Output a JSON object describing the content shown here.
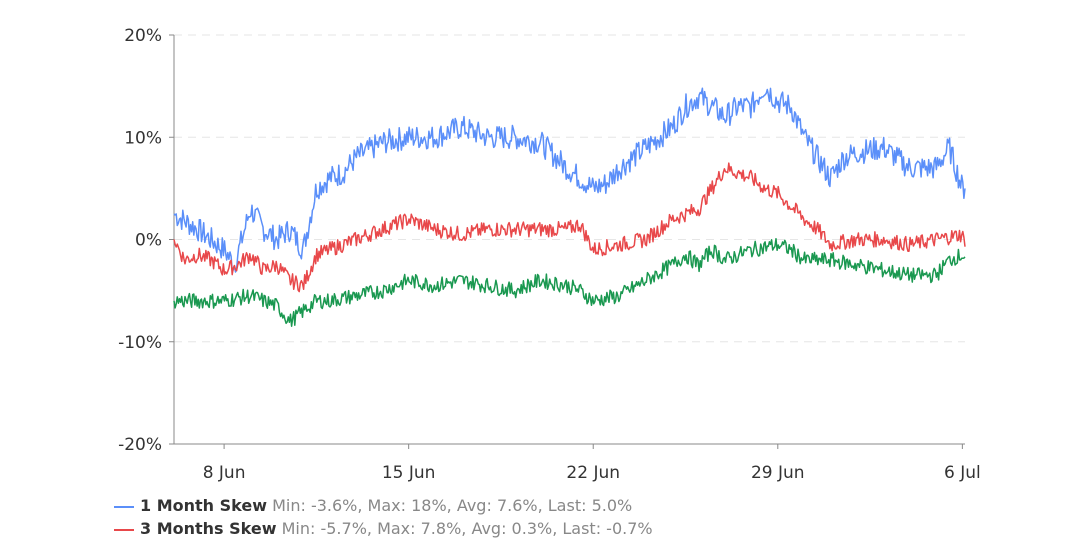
{
  "chart_data": {
    "type": "line",
    "title": "",
    "xlabel": "",
    "ylabel": "",
    "ylim": [
      -20,
      20
    ],
    "yticks": [
      "20%",
      "10%",
      "0%",
      "-10%",
      "-20%"
    ],
    "ytick_values": [
      20,
      10,
      0,
      -10,
      -20
    ],
    "xticks": [
      "8 Jun",
      "15 Jun",
      "22 Jun",
      "29 Jun",
      "6 Jul"
    ],
    "xtick_days": [
      2,
      9,
      16,
      23,
      30
    ],
    "xlim_days": [
      0.1,
      30.1
    ],
    "grid": true,
    "legend_position": "bottom-left",
    "series": [
      {
        "name": "1 Month Skew",
        "stats": "Min: -3.6%, Max: 18%, Avg: 7.6%, Last: 5.0%",
        "color": "#5b8ff9",
        "x_days": [
          0.1,
          1,
          1.5,
          2,
          2.4,
          3,
          3.5,
          4,
          4.5,
          5,
          5.5,
          6,
          6.5,
          7,
          8,
          9,
          10,
          11,
          12,
          13,
          14,
          15,
          16,
          16.5,
          17,
          18,
          19,
          19.5,
          20,
          21,
          21.5,
          22,
          22.5,
          23,
          23.5,
          24,
          24.5,
          25,
          25.5,
          26,
          27,
          28,
          29,
          29.5,
          30,
          30.1
        ],
        "values": [
          2.5,
          1,
          0,
          -1,
          -2.5,
          3,
          1,
          0,
          1,
          -1,
          5,
          6,
          6.5,
          8,
          9.5,
          10,
          10,
          11,
          10,
          10,
          9.5,
          7,
          5,
          5.5,
          7,
          9,
          11,
          13,
          14,
          12,
          13,
          13,
          15,
          13.5,
          13,
          10,
          8,
          6,
          8,
          8.5,
          9,
          7,
          7,
          9,
          5,
          5.0
        ]
      },
      {
        "name": "3 Months Skew",
        "stats": "Min: -5.7%, Max: 7.8%, Avg: 0.3%, Last: -0.7%",
        "color": "#e8484a",
        "x_days": [
          0.1,
          0.5,
          1,
          1.5,
          2,
          2.5,
          3,
          3.5,
          4,
          4.5,
          5,
          5.5,
          6,
          7,
          8,
          9,
          10,
          11,
          12,
          13,
          14,
          15,
          15.5,
          16,
          17,
          18,
          19,
          20,
          20.5,
          21,
          21.5,
          22,
          22.5,
          23,
          24,
          24.5,
          25,
          26,
          27,
          28,
          29,
          30,
          30.1
        ],
        "values": [
          0,
          -2,
          -1.5,
          -2,
          -3,
          -2.5,
          -1.5,
          -3,
          -2.5,
          -4,
          -4.5,
          -1.5,
          -1,
          0,
          1,
          2,
          1,
          0.5,
          1,
          1,
          1,
          1,
          1.5,
          -1,
          -0.5,
          0,
          2,
          3,
          5,
          7,
          6.5,
          6,
          5,
          4.5,
          2,
          1,
          -0.5,
          0,
          0,
          -0.5,
          0,
          0.5,
          -0.7
        ]
      },
      {
        "name": "",
        "stats": "",
        "color": "#1a9850",
        "x_days": [
          0.1,
          1,
          2,
          3,
          4,
          4.5,
          5,
          5.5,
          6,
          7,
          8,
          9,
          10,
          11,
          12,
          13,
          14,
          15,
          15.5,
          16,
          17,
          18,
          19,
          19.5,
          20,
          20.5,
          21,
          21.5,
          22,
          23,
          23.5,
          24,
          25,
          26,
          27,
          28,
          29,
          29.5,
          30,
          30.1
        ],
        "values": [
          -6,
          -6,
          -6,
          -5.5,
          -6.5,
          -8,
          -7,
          -6,
          -6,
          -5.5,
          -5,
          -4,
          -4.5,
          -4,
          -4.5,
          -5,
          -4,
          -4.5,
          -5,
          -6,
          -5.5,
          -4,
          -2.5,
          -1.5,
          -2.5,
          -1,
          -2,
          -1.5,
          -1,
          -0.5,
          -1,
          -2,
          -2,
          -2.5,
          -3,
          -3.5,
          -3.5,
          -2,
          -1.5,
          -1.7
        ]
      }
    ]
  }
}
